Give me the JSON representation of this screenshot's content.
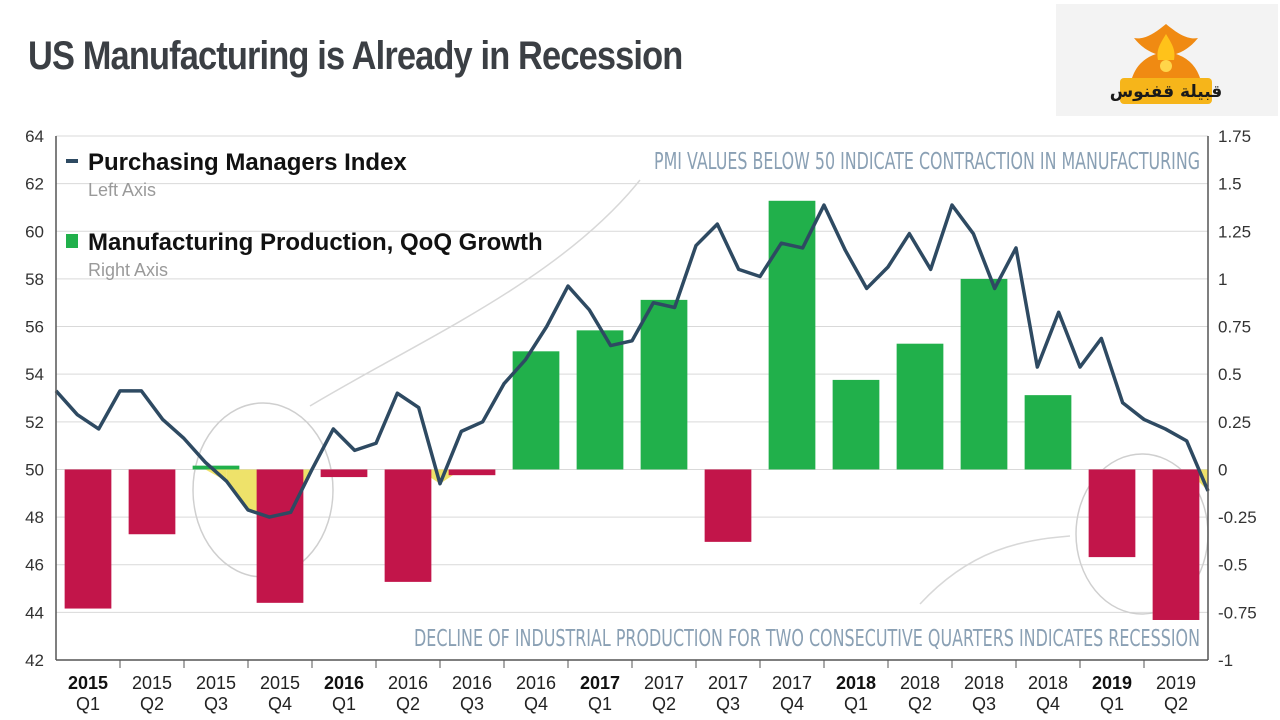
{
  "page": {
    "title": "US Manufacturing is Already in Recession"
  },
  "logo": {
    "text": "قبيلة قفنوس",
    "colors": {
      "flame": "#f08a12",
      "flame_light": "#ffc21a",
      "text": "#1a1a1a"
    }
  },
  "chart_data": {
    "type": "bar+line",
    "left_axis": {
      "label": "Left Axis",
      "ylim": [
        42,
        64
      ],
      "ticks": [
        "42",
        "44",
        "46",
        "48",
        "50",
        "52",
        "54",
        "56",
        "58",
        "60",
        "62",
        "64"
      ]
    },
    "right_axis": {
      "label": "Right Axis",
      "ylim": [
        -1,
        1.75
      ],
      "ticks": [
        "-1",
        "-0.75",
        "-0.5",
        "-0.25",
        "0",
        "0.25",
        "0.5",
        "0.75",
        "1",
        "1.25",
        "1.5",
        "1.75"
      ]
    },
    "legend": [
      {
        "name": "Purchasing Managers Index",
        "axis_note": "Left Axis",
        "color": "#2e4a62"
      },
      {
        "name": "Manufacturing Production, QoQ Growth",
        "axis_note": "Right Axis",
        "color": "#21b04b"
      }
    ],
    "annotations": {
      "top": "PMI VALUES BELOW 50 INDICATE CONTRACTION IN MANUFACTURING",
      "bottom": "DECLINE OF INDUSTRIAL PRODUCTION FOR TWO CONSECUTIVE QUARTERS INDICATES RECESSION"
    },
    "categories": [
      {
        "year": "2015",
        "quarter": "Q1",
        "year_bold": true
      },
      {
        "year": "2015",
        "quarter": "Q2",
        "year_bold": false
      },
      {
        "year": "2015",
        "quarter": "Q3",
        "year_bold": false
      },
      {
        "year": "2015",
        "quarter": "Q4",
        "year_bold": false
      },
      {
        "year": "2016",
        "quarter": "Q1",
        "year_bold": true
      },
      {
        "year": "2016",
        "quarter": "Q2",
        "year_bold": false
      },
      {
        "year": "2016",
        "quarter": "Q3",
        "year_bold": false
      },
      {
        "year": "2016",
        "quarter": "Q4",
        "year_bold": false
      },
      {
        "year": "2017",
        "quarter": "Q1",
        "year_bold": true
      },
      {
        "year": "2017",
        "quarter": "Q2",
        "year_bold": false
      },
      {
        "year": "2017",
        "quarter": "Q3",
        "year_bold": false
      },
      {
        "year": "2017",
        "quarter": "Q4",
        "year_bold": false
      },
      {
        "year": "2018",
        "quarter": "Q1",
        "year_bold": true
      },
      {
        "year": "2018",
        "quarter": "Q2",
        "year_bold": false
      },
      {
        "year": "2018",
        "quarter": "Q3",
        "year_bold": false
      },
      {
        "year": "2018",
        "quarter": "Q4",
        "year_bold": false
      },
      {
        "year": "2019",
        "quarter": "Q1",
        "year_bold": true
      },
      {
        "year": "2019",
        "quarter": "Q2",
        "year_bold": false
      }
    ],
    "production_growth": [
      -0.73,
      -0.34,
      0.02,
      -0.7,
      -0.04,
      -0.59,
      -0.03,
      0.62,
      0.73,
      0.89,
      -0.38,
      1.41,
      0.47,
      0.66,
      1.0,
      0.39,
      -0.46,
      -0.79
    ],
    "bar_colors": {
      "positive": "#21b04b",
      "negative": "#c2154a",
      "shaded": "#e8c53a"
    },
    "pmi_monthly": [
      53.3,
      52.3,
      51.7,
      53.3,
      53.3,
      52.1,
      51.3,
      50.3,
      49.5,
      48.3,
      48.0,
      48.2,
      50.0,
      51.7,
      50.8,
      51.1,
      53.2,
      52.6,
      49.4,
      51.6,
      52.0,
      53.6,
      54.6,
      56.0,
      57.7,
      56.7,
      55.2,
      55.4,
      57.0,
      56.8,
      59.4,
      60.3,
      58.4,
      58.1,
      59.5,
      59.3,
      61.1,
      59.2,
      57.6,
      58.5,
      59.9,
      58.4,
      61.1,
      59.9,
      57.6,
      59.3,
      54.3,
      56.6,
      54.3,
      55.5,
      52.8,
      52.1,
      51.7,
      51.2,
      49.1
    ]
  }
}
